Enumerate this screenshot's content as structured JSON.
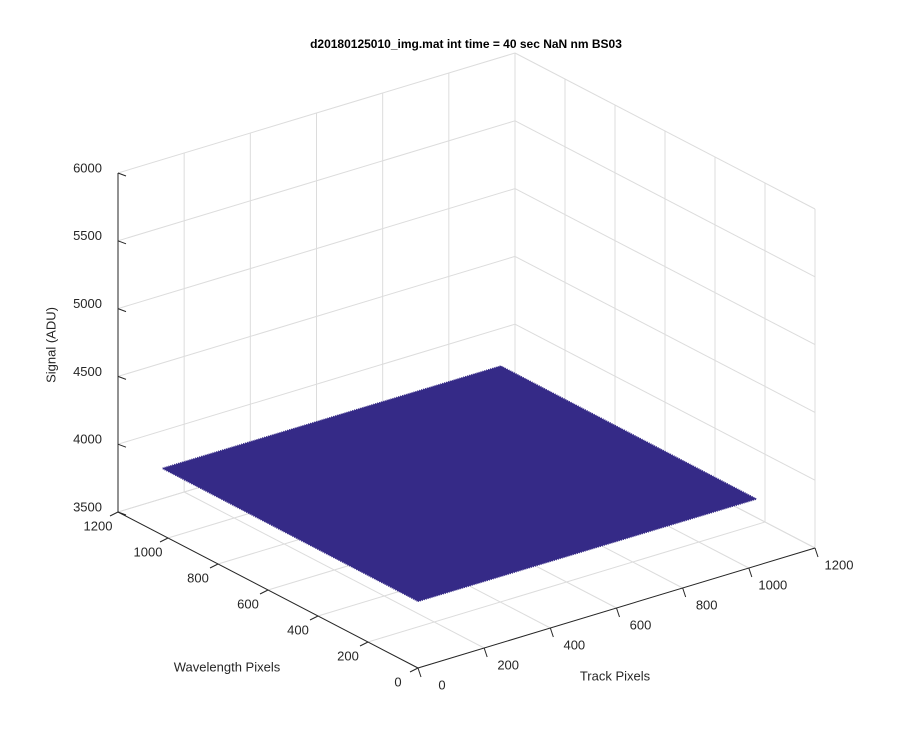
{
  "chart_data": {
    "type": "surface",
    "title": "d20180125010_img.mat int time = 40 sec  NaN nm BS03",
    "xlabel": "Track Pixels",
    "ylabel": "Wavelength Pixels",
    "zlabel": "Signal (ADU)",
    "x": [
      1,
      1024
    ],
    "y": [
      1,
      1024
    ],
    "z": [
      [
        3990,
        3990
      ],
      [
        3990,
        3990
      ]
    ],
    "color": "#352a87",
    "xlim": [
      0,
      1200
    ],
    "ylim": [
      0,
      1200
    ],
    "zlim": [
      3500,
      6000
    ],
    "xticks": [
      0,
      200,
      400,
      600,
      800,
      1000,
      1200
    ],
    "yticks": [
      0,
      200,
      400,
      600,
      800,
      1000,
      1200
    ],
    "zticks": [
      3500,
      4000,
      4500,
      5000,
      5500,
      6000
    ],
    "grid": true
  }
}
